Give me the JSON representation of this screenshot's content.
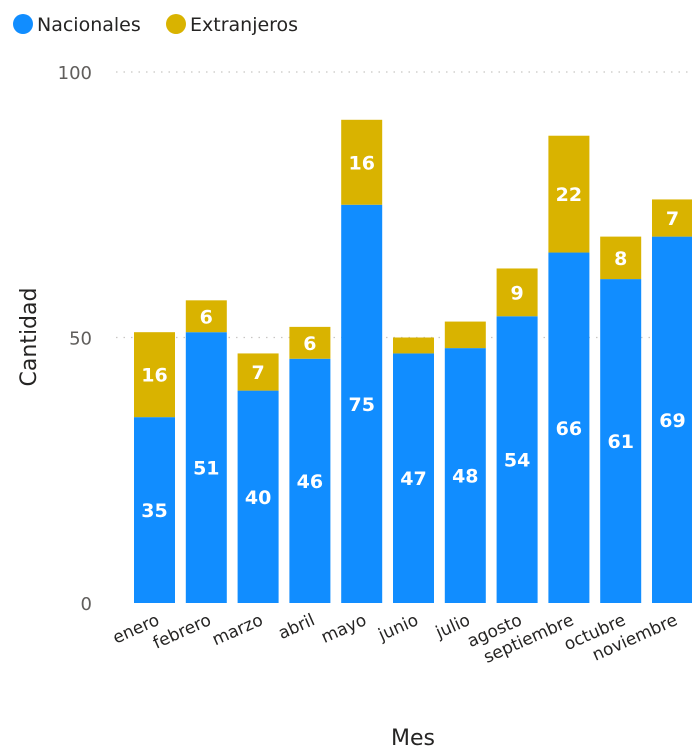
{
  "chart_data": {
    "type": "bar",
    "stacked": true,
    "categories": [
      "enero",
      "febrero",
      "marzo",
      "abril",
      "mayo",
      "junio",
      "julio",
      "agosto",
      "septiembre",
      "octubre",
      "noviembre"
    ],
    "series": [
      {
        "name": "Nacionales",
        "color": "#118DFF",
        "values": [
          35,
          51,
          40,
          46,
          75,
          47,
          48,
          54,
          66,
          61,
          69
        ]
      },
      {
        "name": "Extranjeros",
        "color": "#D9B300",
        "values": [
          16,
          6,
          7,
          6,
          16,
          3,
          5,
          9,
          22,
          8,
          7
        ]
      }
    ],
    "data_labels": [
      {
        "series": 0,
        "index": 0,
        "text": "35"
      },
      {
        "series": 1,
        "index": 0,
        "text": "16"
      },
      {
        "series": 0,
        "index": 1,
        "text": "51"
      },
      {
        "series": 1,
        "index": 1,
        "text": "6"
      },
      {
        "series": 0,
        "index": 2,
        "text": "40"
      },
      {
        "series": 1,
        "index": 2,
        "text": "7"
      },
      {
        "series": 0,
        "index": 3,
        "text": "46"
      },
      {
        "series": 1,
        "index": 3,
        "text": "6"
      },
      {
        "series": 0,
        "index": 4,
        "text": "75"
      },
      {
        "series": 1,
        "index": 4,
        "text": "16"
      },
      {
        "series": 0,
        "index": 5,
        "text": "47"
      },
      {
        "series": 0,
        "index": 6,
        "text": "48"
      },
      {
        "series": 0,
        "index": 7,
        "text": "54"
      },
      {
        "series": 1,
        "index": 7,
        "text": "9"
      },
      {
        "series": 0,
        "index": 8,
        "text": "66"
      },
      {
        "series": 1,
        "index": 8,
        "text": "22"
      },
      {
        "series": 0,
        "index": 9,
        "text": "61"
      },
      {
        "series": 1,
        "index": 9,
        "text": "8"
      },
      {
        "series": 0,
        "index": 10,
        "text": "69"
      },
      {
        "series": 1,
        "index": 10,
        "text": "7"
      }
    ],
    "xlabel": "Mes",
    "ylabel": "Cantidad",
    "ylim": [
      0,
      100
    ],
    "yticks": [
      {
        "value": 0,
        "label": "0"
      },
      {
        "value": 50,
        "label": "50"
      },
      {
        "value": 100,
        "label": "100"
      }
    ],
    "grid": true,
    "legend_position": "top-left"
  }
}
